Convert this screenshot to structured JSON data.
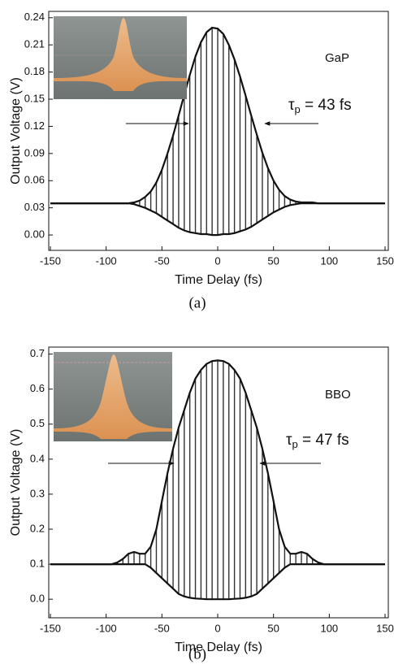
{
  "chart_data": [
    {
      "type": "line",
      "caption": "(a)",
      "xlabel": "Time Delay (fs)",
      "ylabel": "Output Voltage (V)",
      "label": "GaP",
      "pulse_width": {
        "symbol": "τ",
        "subscript": "p",
        "text": " = 43 fs"
      },
      "xlim": [
        -150,
        150
      ],
      "xticks": [
        -150,
        -100,
        -50,
        0,
        50,
        100,
        150
      ],
      "ylim": [
        -0.017,
        0.247
      ],
      "yticks": [
        {
          "value": 0,
          "label": "0.00"
        },
        0.03,
        0.06,
        0.09,
        0.12,
        0.15,
        0.18,
        0.21,
        0.24
      ],
      "grid": false,
      "x": [
        -150,
        -145,
        -140,
        -135,
        -130,
        -125,
        -120,
        -115,
        -110,
        -105,
        -100,
        -95,
        -90,
        -85,
        -80,
        -75,
        -70,
        -65,
        -60,
        -55,
        -50,
        -45,
        -40,
        -35,
        -30,
        -25,
        -20,
        -15,
        -10,
        -5,
        0,
        5,
        10,
        15,
        20,
        25,
        30,
        35,
        40,
        45,
        50,
        55,
        60,
        65,
        70,
        75,
        80,
        85,
        90,
        95,
        100,
        105,
        110,
        115,
        120,
        125,
        130,
        135,
        140,
        145,
        150
      ],
      "series": [
        {
          "color": "#111111",
          "values": [
            0.035,
            0.035,
            0.035,
            0.035,
            0.035,
            0.035,
            0.035,
            0.035,
            0.035,
            0.035,
            0.035,
            0.035,
            0.035,
            0.035,
            0.035,
            0.036,
            0.038,
            0.042,
            0.048,
            0.058,
            0.072,
            0.09,
            0.11,
            0.132,
            0.155,
            0.177,
            0.197,
            0.213,
            0.224,
            0.229,
            0.228,
            0.222,
            0.21,
            0.194,
            0.175,
            0.154,
            0.132,
            0.111,
            0.091,
            0.074,
            0.06,
            0.05,
            0.043,
            0.039,
            0.037,
            0.036,
            0.036,
            0.036,
            0.035,
            0.035,
            0.035,
            0.035,
            0.035,
            0.035,
            0.035,
            0.035,
            0.035,
            0.035,
            0.035,
            0.035,
            0.035
          ]
        },
        {
          "color": "#111111",
          "values": [
            0.035,
            0.035,
            0.035,
            0.035,
            0.035,
            0.035,
            0.035,
            0.035,
            0.035,
            0.035,
            0.035,
            0.035,
            0.035,
            0.035,
            0.035,
            0.034,
            0.032,
            0.03,
            0.027,
            0.024,
            0.02,
            0.016,
            0.012,
            0.008,
            0.005,
            0.003,
            0.002,
            0.001,
            0.001,
            0.0,
            0.0,
            0.001,
            0.001,
            0.002,
            0.004,
            0.006,
            0.009,
            0.013,
            0.017,
            0.021,
            0.025,
            0.028,
            0.031,
            0.033,
            0.034,
            0.035,
            0.035,
            0.035,
            0.035,
            0.035,
            0.035,
            0.035,
            0.035,
            0.035,
            0.035,
            0.035,
            0.035,
            0.035,
            0.035,
            0.035,
            0.035
          ]
        }
      ]
    },
    {
      "type": "line",
      "caption": "(b)",
      "xlabel": "Time Delay (fs)",
      "ylabel": "Output Voltage (V)",
      "label": "BBO",
      "pulse_width": {
        "symbol": "τ",
        "subscript": "p",
        "text": " = 47 fs"
      },
      "xlim": [
        -150,
        150
      ],
      "xticks": [
        -150,
        -100,
        -50,
        0,
        50,
        100,
        150
      ],
      "ylim": [
        -0.053,
        0.72
      ],
      "yticks": [
        {
          "value": 0,
          "label": "0.0"
        },
        0.1,
        0.2,
        0.3,
        0.4,
        0.5,
        0.6,
        0.7
      ],
      "grid": false,
      "x": [
        -150,
        -145,
        -140,
        -135,
        -130,
        -125,
        -120,
        -115,
        -110,
        -105,
        -100,
        -95,
        -90,
        -85,
        -80,
        -75,
        -70,
        -65,
        -60,
        -55,
        -50,
        -45,
        -40,
        -35,
        -30,
        -25,
        -20,
        -15,
        -10,
        -5,
        0,
        5,
        10,
        15,
        20,
        25,
        30,
        35,
        40,
        45,
        50,
        55,
        60,
        65,
        70,
        75,
        80,
        85,
        90,
        95,
        100,
        105,
        110,
        115,
        120,
        125,
        130,
        135,
        140,
        145,
        150
      ],
      "series": [
        {
          "color": "#111111",
          "values": [
            0.1,
            0.1,
            0.1,
            0.1,
            0.1,
            0.1,
            0.1,
            0.1,
            0.1,
            0.1,
            0.1,
            0.1,
            0.105,
            0.115,
            0.13,
            0.135,
            0.13,
            0.13,
            0.15,
            0.2,
            0.28,
            0.36,
            0.43,
            0.49,
            0.54,
            0.59,
            0.63,
            0.655,
            0.672,
            0.68,
            0.682,
            0.68,
            0.672,
            0.655,
            0.63,
            0.59,
            0.54,
            0.49,
            0.43,
            0.36,
            0.28,
            0.2,
            0.15,
            0.13,
            0.13,
            0.135,
            0.13,
            0.115,
            0.105,
            0.1,
            0.1,
            0.1,
            0.1,
            0.1,
            0.1,
            0.1,
            0.1,
            0.1,
            0.1,
            0.1,
            0.1
          ]
        },
        {
          "color": "#111111",
          "values": [
            0.1,
            0.1,
            0.1,
            0.1,
            0.1,
            0.1,
            0.1,
            0.1,
            0.1,
            0.1,
            0.1,
            0.1,
            0.1,
            0.1,
            0.1,
            0.1,
            0.1,
            0.1,
            0.09,
            0.075,
            0.06,
            0.045,
            0.03,
            0.015,
            0.008,
            0.004,
            0.002,
            0.001,
            0.0,
            0.0,
            0.0,
            0.0,
            0.0,
            0.001,
            0.002,
            0.004,
            0.008,
            0.015,
            0.03,
            0.045,
            0.06,
            0.075,
            0.09,
            0.1,
            0.1,
            0.1,
            0.1,
            0.1,
            0.1,
            0.1,
            0.1,
            0.1,
            0.1,
            0.1,
            0.1,
            0.1,
            0.1,
            0.1,
            0.1,
            0.1,
            0.1
          ]
        }
      ]
    }
  ]
}
